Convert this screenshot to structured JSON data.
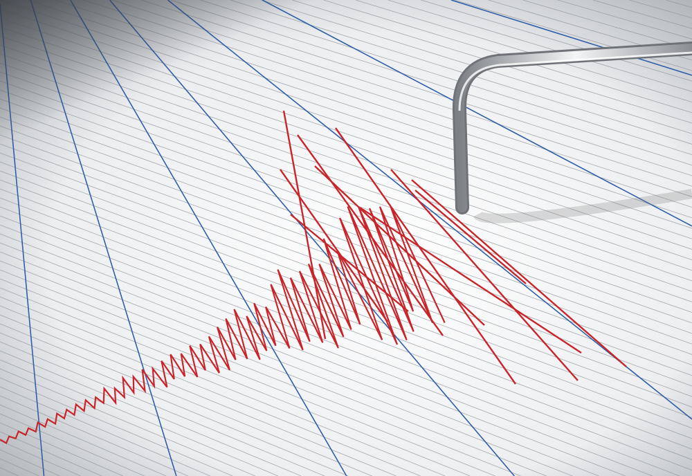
{
  "scene": {
    "paper_color": "#f2f3f4",
    "shadow_color": "#55585c",
    "grid_line_color": "#8f9499",
    "blue_line_color": "#2f5fa8",
    "trace_color": "#c8252a",
    "needle_color": "#b9bcc0"
  }
}
